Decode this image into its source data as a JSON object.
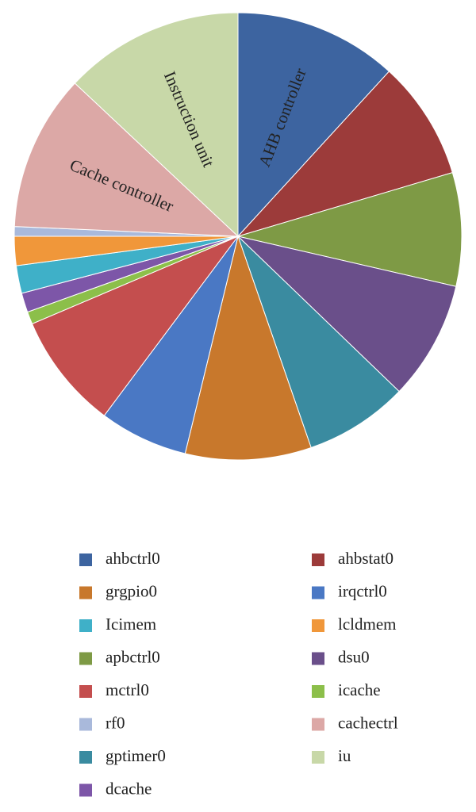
{
  "chart_data": {
    "type": "pie",
    "categories": [
      "ahbctrl0",
      "ahbstat0",
      "apbctrl0",
      "dsu0",
      "gptimer0",
      "grgpio0",
      "irqctrl0",
      "mctrl0",
      "icache",
      "dcache",
      "Icimem",
      "lcldmem",
      "rf0",
      "cachectrl",
      "iu"
    ],
    "values": [
      11.8,
      8.6,
      8.2,
      8.6,
      7.5,
      9.1,
      6.4,
      8.4,
      0.9,
      1.4,
      2.0,
      2.1,
      0.7,
      11.3,
      13.0
    ],
    "colors": [
      "#3d64a0",
      "#9c3b3a",
      "#7e9a45",
      "#6a4f8a",
      "#3a8ba0",
      "#c8782c",
      "#4a78c4",
      "#c44e4e",
      "#8cbf4a",
      "#7d56a8",
      "#3fb0c8",
      "#f0973a",
      "#a9b9db",
      "#dca8a6",
      "#c8d8a8"
    ],
    "slice_labels": [
      "AHB controller",
      null,
      null,
      null,
      null,
      null,
      null,
      null,
      null,
      null,
      null,
      null,
      null,
      "Cache controller",
      "Instruction unit"
    ]
  }
}
